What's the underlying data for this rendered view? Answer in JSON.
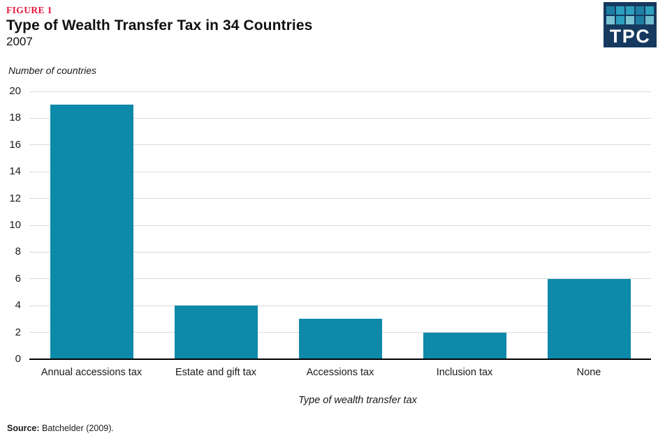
{
  "figure_label": "FIGURE 1",
  "title": "Type of Wealth Transfer Tax in 34 Countries",
  "subtitle": "2007",
  "logo": {
    "text": "TPC",
    "bg_color": "#16395f",
    "tile_colors": [
      "#1d7fa3",
      "#2da0bd",
      "#2da0bd",
      "#1d7fa3",
      "#2da0bd",
      "#79c3d3",
      "#2da0bd",
      "#79c3d3",
      "#1d7fa3",
      "#6fbccd"
    ]
  },
  "chart_data": {
    "type": "bar",
    "title": "Type of Wealth Transfer Tax in 34 Countries",
    "subtitle": "2007",
    "categories": [
      "Annual accessions tax",
      "Estate and gift tax",
      "Accessions tax",
      "Inclusion tax",
      "None"
    ],
    "values": [
      19,
      4,
      3,
      2,
      6
    ],
    "xlabel": "Type of wealth transfer tax",
    "ylabel": "Number of countries",
    "ylim": [
      0,
      20
    ],
    "ytick_step": 2,
    "grid": true,
    "legend": "none",
    "bar_color": "#0d89a9",
    "gridline_color": "#d9d9d9",
    "axis_color": "#000000"
  },
  "source": {
    "label": "Source:",
    "text": " Batchelder (2009)."
  },
  "colors": {
    "figure_label": "#e4173a",
    "text": "#1a1a1a"
  }
}
